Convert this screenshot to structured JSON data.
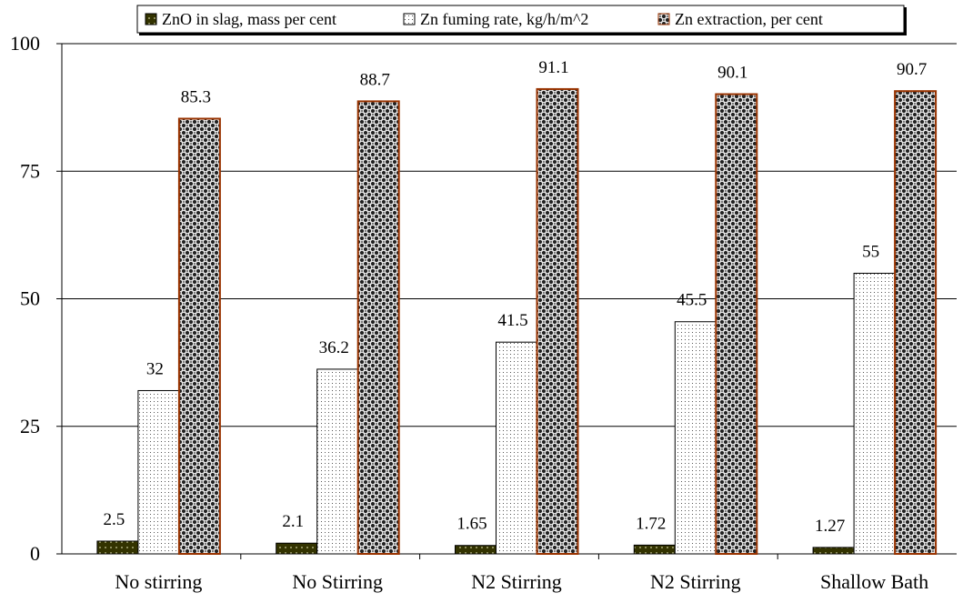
{
  "chart_data": {
    "type": "bar",
    "title": "",
    "xlabel": "",
    "ylabel": "",
    "categories": [
      "No stirring",
      "No Stirring",
      "N2 Stirring",
      "N2 Stirring",
      "Shallow Bath"
    ],
    "series": [
      {
        "name": "ZnO in slag, mass per cent",
        "values": [
          2.5,
          2.1,
          1.65,
          1.72,
          1.27
        ],
        "labels": [
          "2.5",
          "2.1",
          "1.65",
          "1.72",
          "1.27"
        ],
        "color": "#333300",
        "pattern": "dark-dots"
      },
      {
        "name": "Zn fuming rate, kg/h/m^2",
        "values": [
          32,
          36.2,
          41.5,
          45.5,
          55
        ],
        "labels": [
          "32",
          "36.2",
          "41.5",
          "45.5",
          "55"
        ],
        "color": "#ffffff",
        "pattern": "light-dots"
      },
      {
        "name": "Zn extraction, per cent",
        "values": [
          85.3,
          88.7,
          91.1,
          90.1,
          90.7
        ],
        "labels": [
          "85.3",
          "88.7",
          "91.1",
          "90.1",
          "90.7"
        ],
        "color": "#993300",
        "pattern": "checker"
      }
    ],
    "ylim": [
      0,
      100
    ],
    "yticks": [
      0,
      25,
      50,
      75,
      100
    ],
    "ytick_labels": [
      "0",
      "25",
      "50",
      "75",
      "100"
    ],
    "grid": true,
    "legend_position": "top"
  }
}
